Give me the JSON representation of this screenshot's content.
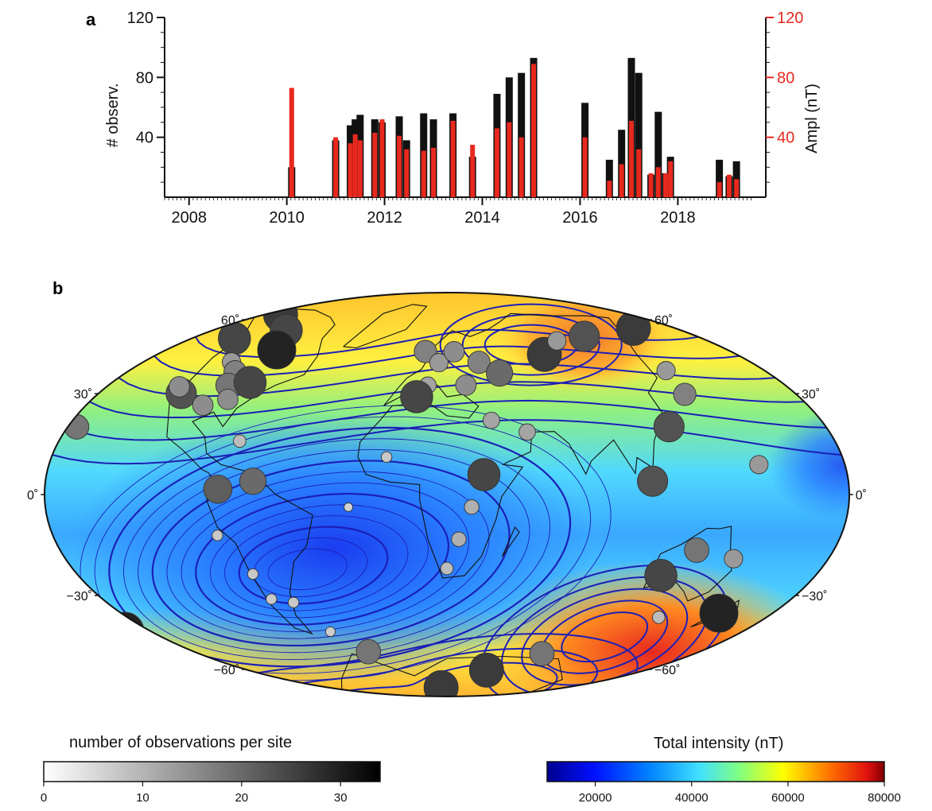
{
  "panel_a_label": "a",
  "panel_b_label": "b",
  "colors": {
    "count_bar": "#111111",
    "ampl_bar": "#e8281e",
    "contour": "#1b1fb8"
  },
  "chart_data": [
    {
      "type": "bar",
      "xlabel": "",
      "ylabel": "# observ.",
      "y2label": "Ampl (nT)",
      "xlim": [
        2007.5,
        2019.8
      ],
      "ylim": [
        0,
        120
      ],
      "y2lim": [
        0,
        120
      ],
      "x_ticks": [
        2008,
        2010,
        2012,
        2014,
        2016,
        2018
      ],
      "y_ticks": [
        40,
        80,
        120
      ],
      "y2_ticks": [
        40,
        80,
        120
      ],
      "series": [
        {
          "x": [
            2010.1,
            2011.0,
            2011.3,
            2011.4,
            2011.5,
            2011.8,
            2011.95,
            2012.3,
            2012.45,
            2012.8,
            2013.0,
            2013.4,
            2013.8,
            2014.3,
            2014.55,
            2014.8,
            2015.05,
            2016.1,
            2016.6,
            2016.85,
            2017.05,
            2017.2,
            2017.45,
            2017.6,
            2017.75,
            2017.85,
            2018.85,
            2019.05,
            2019.2
          ],
          "values": [
            20,
            38,
            48,
            52,
            55,
            52,
            50,
            54,
            38,
            56,
            52,
            56,
            27,
            69,
            80,
            83,
            93,
            63,
            25,
            45,
            93,
            83,
            15,
            57,
            16,
            27,
            25,
            14,
            24
          ]
        },
        {
          "x": [
            2010.1,
            2011.0,
            2011.3,
            2011.4,
            2011.5,
            2011.8,
            2011.95,
            2012.3,
            2012.45,
            2012.8,
            2013.0,
            2013.4,
            2013.8,
            2014.3,
            2014.55,
            2014.8,
            2015.05,
            2016.1,
            2016.6,
            2016.85,
            2017.05,
            2017.2,
            2017.45,
            2017.6,
            2017.75,
            2017.85,
            2018.85,
            2019.05,
            2019.2
          ],
          "values": [
            73,
            40,
            36,
            42,
            38,
            43,
            52,
            41,
            32,
            31,
            33,
            51,
            35,
            46,
            50,
            40,
            89,
            40,
            11,
            22,
            51,
            32,
            16,
            20,
            16,
            24,
            10,
            15,
            12
          ]
        }
      ]
    },
    {
      "type": "heatmap",
      "projection": "Hammer-Aitoff",
      "lat_ticks": [
        "60˚",
        "30˚",
        "0˚",
        "−30˚",
        "−60˚"
      ],
      "points": [
        {
          "lon": -150,
          "lat": 65,
          "n": 30
        },
        {
          "lon": -115,
          "lat": 62,
          "n": 28
        },
        {
          "lon": -95,
          "lat": 55,
          "n": 34
        },
        {
          "lon": -135,
          "lat": 55,
          "n": 28
        },
        {
          "lon": -110,
          "lat": 48,
          "n": 14
        },
        {
          "lon": -100,
          "lat": 45,
          "n": 18
        },
        {
          "lon": -95,
          "lat": 40,
          "n": 20
        },
        {
          "lon": -85,
          "lat": 42,
          "n": 28
        },
        {
          "lon": -115,
          "lat": 35,
          "n": 26
        },
        {
          "lon": -120,
          "lat": 37,
          "n": 16
        },
        {
          "lon": -98,
          "lat": 32,
          "n": 16
        },
        {
          "lon": -88,
          "lat": 35,
          "n": 16
        },
        {
          "lon": -155,
          "lat": 20,
          "n": 20
        },
        {
          "lon": -70,
          "lat": 20,
          "n": 8
        },
        {
          "lon": -60,
          "lat": 5,
          "n": 22
        },
        {
          "lon": -75,
          "lat": 2,
          "n": 24
        },
        {
          "lon": -78,
          "lat": -15,
          "n": 6
        },
        {
          "lon": -70,
          "lat": -30,
          "n": 6
        },
        {
          "lon": -70,
          "lat": -40,
          "n": 6
        },
        {
          "lon": -60,
          "lat": -42,
          "n": 6
        },
        {
          "lon": -55,
          "lat": -55,
          "n": 5
        },
        {
          "lon": -45,
          "lat": -65,
          "n": 20
        },
        {
          "lon": -20,
          "lat": -5,
          "n": 4
        },
        {
          "lon": -5,
          "lat": 15,
          "n": 6
        },
        {
          "lon": 5,
          "lat": 60,
          "n": 18
        },
        {
          "lon": 15,
          "lat": 55,
          "n": 14
        },
        {
          "lon": 10,
          "lat": 45,
          "n": 12
        },
        {
          "lon": 5,
          "lat": 40,
          "n": 28
        },
        {
          "lon": 25,
          "lat": 60,
          "n": 16
        },
        {
          "lon": 40,
          "lat": 55,
          "n": 18
        },
        {
          "lon": 30,
          "lat": 45,
          "n": 16
        },
        {
          "lon": 50,
          "lat": 50,
          "n": 22
        },
        {
          "lon": 40,
          "lat": 30,
          "n": 12
        },
        {
          "lon": 55,
          "lat": 25,
          "n": 12
        },
        {
          "lon": 35,
          "lat": 8,
          "n": 28
        },
        {
          "lon": 30,
          "lat": -5,
          "n": 10
        },
        {
          "lon": 25,
          "lat": -18,
          "n": 10
        },
        {
          "lon": 20,
          "lat": -30,
          "n": 8
        },
        {
          "lon": 85,
          "lat": 57,
          "n": 30
        },
        {
          "lon": 105,
          "lat": 62,
          "n": 14
        },
        {
          "lon": 130,
          "lat": 62,
          "n": 26
        },
        {
          "lon": 145,
          "lat": 45,
          "n": 14
        },
        {
          "lon": 140,
          "lat": 36,
          "n": 18
        },
        {
          "lon": 120,
          "lat": 25,
          "n": 26
        },
        {
          "lon": 155,
          "lat": 10,
          "n": 14
        },
        {
          "lon": 105,
          "lat": 5,
          "n": 26
        },
        {
          "lon": 130,
          "lat": -20,
          "n": 20
        },
        {
          "lon": 150,
          "lat": -22,
          "n": 14
        },
        {
          "lon": 120,
          "lat": -30,
          "n": 28
        },
        {
          "lon": 140,
          "lat": -45,
          "n": 8
        },
        {
          "lon": 170,
          "lat": -40,
          "n": 34
        },
        {
          "lon": 100,
          "lat": -65,
          "n": 20
        },
        {
          "lon": 70,
          "lat": -75,
          "n": 30
        },
        {
          "lon": 0,
          "lat": -85,
          "n": 30
        },
        {
          "lon": -175,
          "lat": -40,
          "n": 34
        },
        {
          "lon": 175,
          "lat": 60,
          "n": 30
        },
        {
          "lon": -165,
          "lat": 0,
          "n": 5
        }
      ],
      "contour_levels_bold": [
        25000,
        30000,
        35000,
        40000,
        45000,
        50000,
        55000,
        60000,
        65000
      ]
    }
  ],
  "colorbar_obs": {
    "title": "number of observations per site",
    "range": [
      0,
      34
    ],
    "ticks": [
      "0",
      "10",
      "20",
      "30"
    ]
  },
  "colorbar_intensity": {
    "title": "Total intensity (nT)",
    "range": [
      10000,
      80000
    ],
    "ticks": [
      "20000",
      "40000",
      "60000",
      "80000"
    ]
  }
}
